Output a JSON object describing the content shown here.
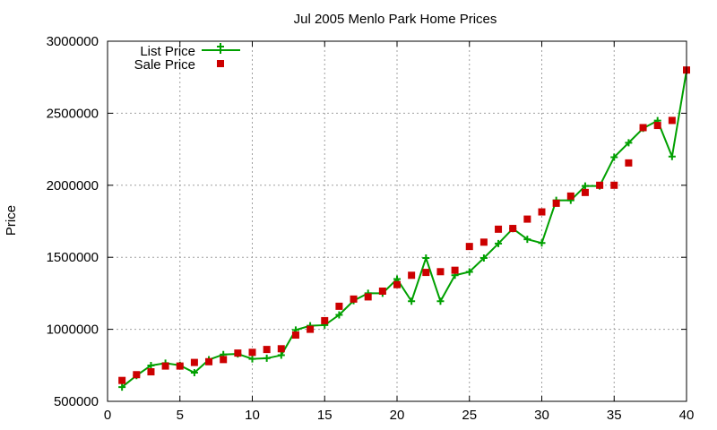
{
  "chart_data": {
    "type": "line",
    "title": "Jul 2005 Menlo Park Home Prices",
    "xlabel": "",
    "ylabel": "Price",
    "xlim": [
      0,
      40
    ],
    "ylim": [
      500000,
      3000000
    ],
    "xticks": [
      0,
      5,
      10,
      15,
      20,
      25,
      30,
      35,
      40
    ],
    "yticks": [
      500000,
      1000000,
      1500000,
      2000000,
      2500000,
      3000000
    ],
    "grid": true,
    "legend_position": "top-left",
    "x": [
      1,
      2,
      3,
      4,
      5,
      6,
      7,
      8,
      9,
      10,
      11,
      12,
      13,
      14,
      15,
      16,
      17,
      18,
      19,
      20,
      21,
      22,
      23,
      24,
      25,
      26,
      27,
      28,
      29,
      30,
      31,
      32,
      33,
      34,
      35,
      36,
      37,
      38,
      39,
      40
    ],
    "series": [
      {
        "name": "List Price",
        "style": "lines+points",
        "color": "#00a000",
        "values": [
          599000,
          679000,
          749000,
          765000,
          750000,
          699000,
          789000,
          825000,
          829000,
          795000,
          799000,
          820000,
          995000,
          1025000,
          1029000,
          1100000,
          1199000,
          1250000,
          1250000,
          1349000,
          1195000,
          1495000,
          1195000,
          1375000,
          1399000,
          1495000,
          1595000,
          1699000,
          1625000,
          1599000,
          1895000,
          1895000,
          1995000,
          1995000,
          2195000,
          2295000,
          2395000,
          2449000,
          2199000,
          2795000
        ]
      },
      {
        "name": "Sale Price",
        "style": "points",
        "color": "#cc0000",
        "values": [
          645000,
          685000,
          705000,
          745000,
          745000,
          770000,
          775000,
          790000,
          835000,
          840000,
          860000,
          865000,
          960000,
          1000000,
          1060000,
          1160000,
          1210000,
          1225000,
          1265000,
          1310000,
          1375000,
          1395000,
          1400000,
          1410000,
          1575000,
          1605000,
          1695000,
          1700000,
          1765000,
          1815000,
          1875000,
          1925000,
          1950000,
          2000000,
          2000000,
          2155000,
          2400000,
          2415000,
          2450000,
          2800000
        ]
      }
    ]
  }
}
